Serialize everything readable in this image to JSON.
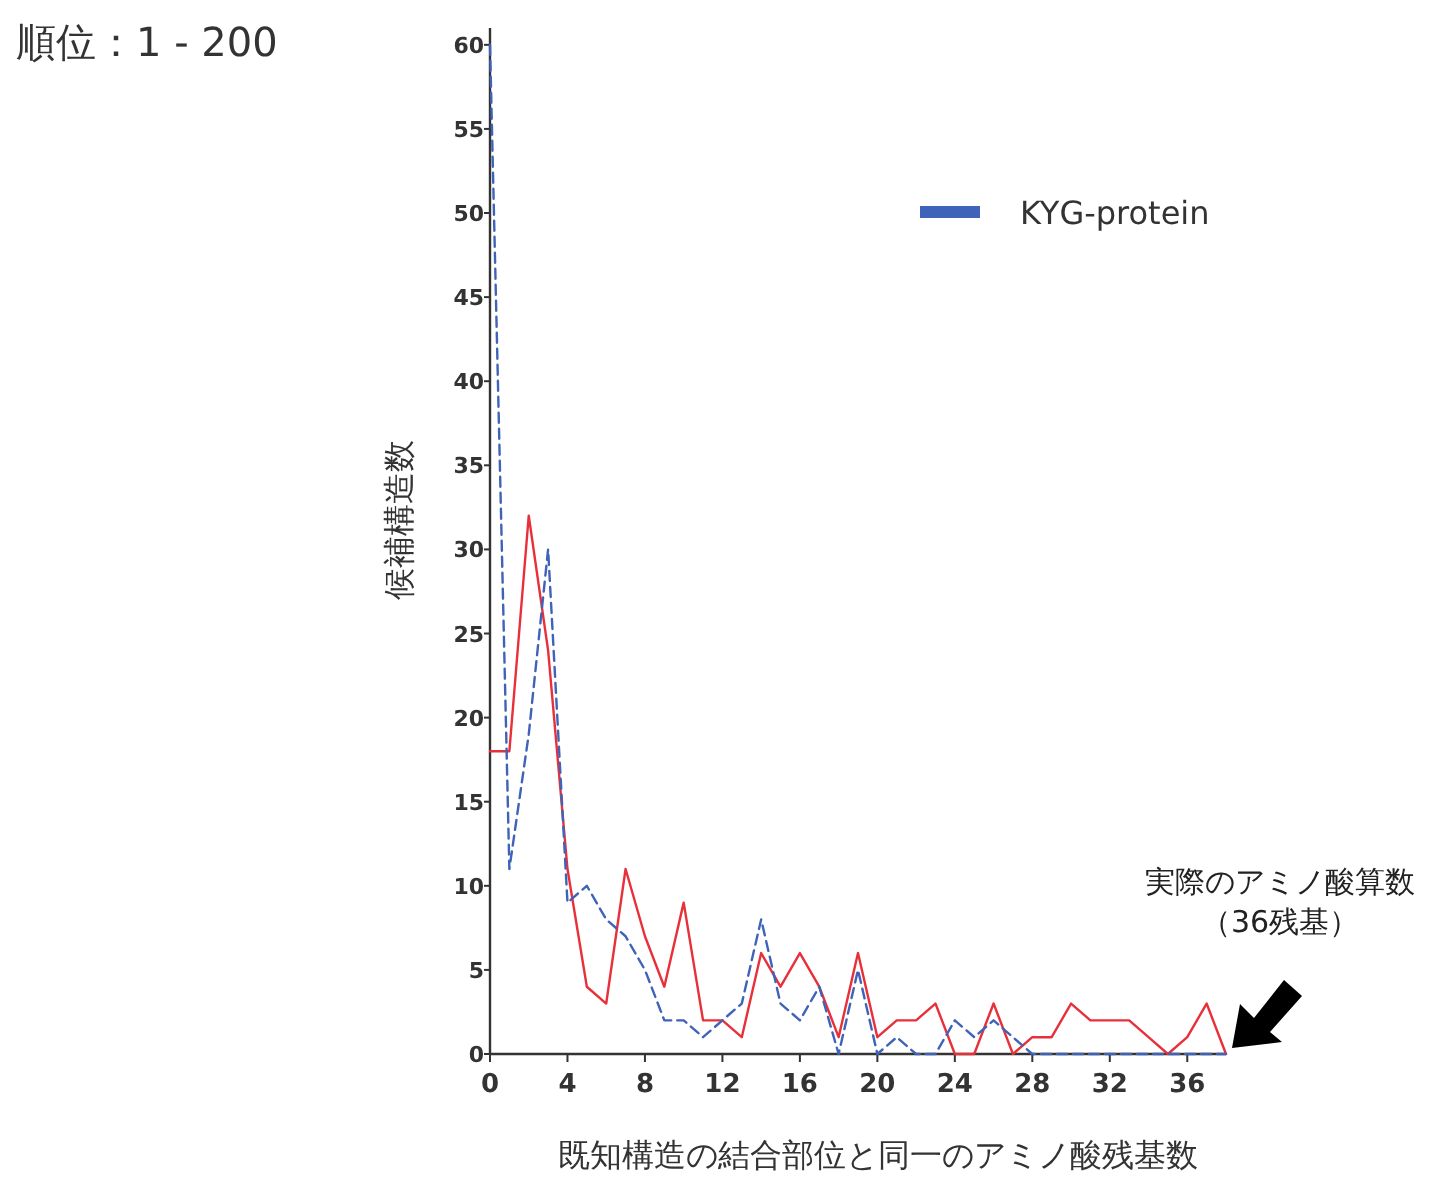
{
  "chart_data": {
    "type": "line",
    "title": "順位：1 - 200",
    "xlabel": "既知構造の結合部位と同一のアミノ酸残基数",
    "ylabel": "候補構造数",
    "x": [
      0,
      1,
      2,
      3,
      4,
      5,
      6,
      7,
      8,
      9,
      10,
      11,
      12,
      13,
      14,
      15,
      16,
      17,
      18,
      19,
      20,
      21,
      22,
      23,
      24,
      25,
      26,
      27,
      28,
      29,
      30,
      31,
      32,
      33,
      34,
      35,
      36,
      37,
      38
    ],
    "series": [
      {
        "color": "#e8303a",
        "line_style": "solid",
        "values": [
          18,
          18,
          32,
          24,
          11,
          4,
          3,
          11,
          7,
          4,
          9,
          2,
          2,
          1,
          6,
          4,
          6,
          4,
          1,
          6,
          1,
          2,
          2,
          3,
          0,
          0,
          3,
          0,
          1,
          1,
          3,
          2,
          2,
          2,
          1,
          0,
          1,
          3,
          0
        ]
      },
      {
        "name": "KYG-protein",
        "color": "#3f63b8",
        "line_style": "dashed",
        "values": [
          60,
          11,
          19,
          30,
          9,
          10,
          8,
          7,
          5,
          2,
          2,
          1,
          2,
          3,
          8,
          3,
          2,
          4,
          0,
          5,
          0,
          1,
          0,
          0,
          2,
          1,
          2,
          1,
          0,
          0,
          0,
          0,
          0,
          0,
          0,
          0,
          0,
          0,
          0
        ]
      }
    ],
    "xlim": [
      0,
      38
    ],
    "ylim": [
      0,
      61
    ],
    "xticks": [
      0,
      4,
      8,
      12,
      16,
      20,
      24,
      28,
      32,
      36
    ],
    "yticks": [
      0,
      5,
      10,
      15,
      20,
      25,
      30,
      35,
      40,
      45,
      50,
      55,
      60
    ],
    "grid": false,
    "legend": "top right",
    "marker": "none",
    "annotations": [
      "実際のアミノ酸算数",
      "（36残基）"
    ]
  }
}
